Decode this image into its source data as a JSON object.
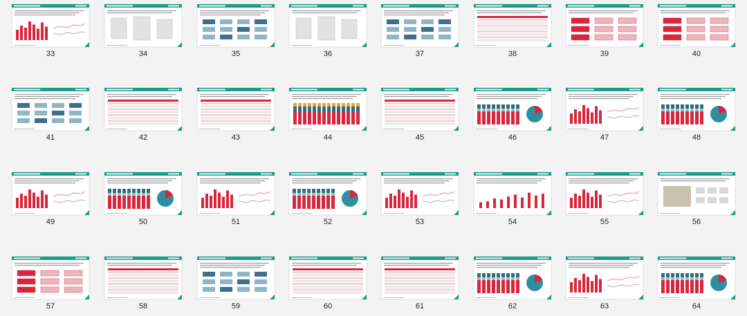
{
  "slides": [
    33,
    34,
    35,
    36,
    37,
    38,
    39,
    40,
    41,
    42,
    43,
    44,
    45,
    46,
    47,
    48,
    49,
    50,
    51,
    52,
    53,
    54,
    55,
    56,
    57,
    58,
    59,
    60,
    61,
    62,
    63,
    64
  ]
}
